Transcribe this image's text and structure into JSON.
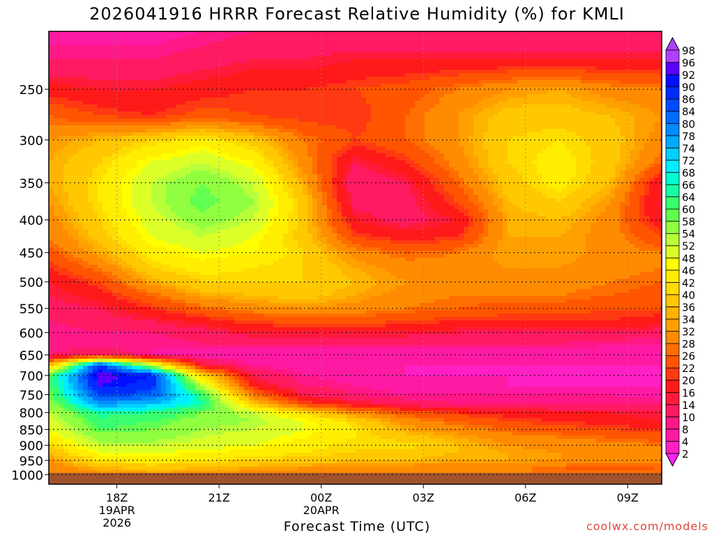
{
  "title": "2026041916 HRRR Forecast Relative Humidity (%) for KMLI",
  "credit": "coolwx.com/models",
  "chart_data": {
    "type": "heatmap",
    "title": "2026041916 HRRR Forecast Relative Humidity (%) for KMLI",
    "xlabel": "Forecast Time (UTC)",
    "ylabel": "",
    "x_axis": {
      "unit": "forecast hour from 2026-04-19 16Z",
      "range": [
        0,
        18
      ],
      "ticks": [
        {
          "hour": 2,
          "label": "18Z",
          "sub": [
            "19APR",
            "2026"
          ]
        },
        {
          "hour": 5,
          "label": "21Z",
          "sub": []
        },
        {
          "hour": 8,
          "label": "00Z",
          "sub": [
            "20APR"
          ]
        },
        {
          "hour": 11,
          "label": "03Z",
          "sub": []
        },
        {
          "hour": 14,
          "label": "06Z",
          "sub": []
        },
        {
          "hour": 17,
          "label": "09Z",
          "sub": []
        }
      ]
    },
    "y_axis": {
      "unit": "pressure (hPa)",
      "scale": "log",
      "reversed": true,
      "range": [
        1035,
        203
      ],
      "ticks": [
        250,
        300,
        350,
        400,
        450,
        500,
        550,
        600,
        650,
        700,
        750,
        800,
        850,
        900,
        950,
        1000
      ],
      "gridlines": "dotted",
      "surface_pressure": 994
    },
    "colorbar": {
      "levels": [
        2,
        4,
        8,
        10,
        14,
        16,
        20,
        22,
        26,
        28,
        32,
        34,
        36,
        40,
        42,
        46,
        48,
        52,
        54,
        58,
        60,
        64,
        66,
        68,
        72,
        74,
        78,
        80,
        84,
        86,
        90,
        92,
        96,
        98
      ],
      "colors": [
        "#ff1fff",
        "#ff1fc4",
        "#ff1aa3",
        "#ff1886",
        "#ff1a62",
        "#ff1a3a",
        "#ff1a1a",
        "#ff3a12",
        "#ff5500",
        "#ff6e00",
        "#ff8c00",
        "#ffa000",
        "#ffb400",
        "#ffc800",
        "#ffdc00",
        "#ffee00",
        "#ffff00",
        "#dcff28",
        "#b8ff3a",
        "#90ff40",
        "#60ff50",
        "#38ff70",
        "#18ffa0",
        "#00ffd0",
        "#00eeff",
        "#00cfff",
        "#00aaff",
        "#008cff",
        "#006cff",
        "#004cff",
        "#002cff",
        "#0010ff",
        "#5a00ff",
        "#b040ff"
      ]
    },
    "ground_color": "#a0522d",
    "grid": {
      "hours": [
        0,
        1.5,
        3,
        4.5,
        6,
        7.5,
        9,
        10.5,
        12,
        13.5,
        15,
        16.5,
        18
      ],
      "pressures": [
        203,
        225,
        250,
        275,
        300,
        325,
        350,
        375,
        400,
        425,
        450,
        475,
        500,
        525,
        550,
        575,
        600,
        625,
        650,
        675,
        700,
        725,
        750,
        775,
        800,
        825,
        850,
        875,
        900,
        925,
        950,
        975,
        1000
      ],
      "rh": [
        [
          6,
          6,
          6,
          8,
          10,
          10,
          10,
          10,
          10,
          10,
          10,
          10,
          10
        ],
        [
          10,
          10,
          10,
          12,
          14,
          14,
          16,
          16,
          16,
          16,
          16,
          16,
          16
        ],
        [
          18,
          16,
          16,
          18,
          20,
          20,
          22,
          24,
          28,
          32,
          34,
          30,
          28
        ],
        [
          26,
          22,
          20,
          24,
          22,
          20,
          20,
          26,
          32,
          38,
          38,
          36,
          32
        ],
        [
          32,
          36,
          40,
          44,
          38,
          28,
          22,
          26,
          32,
          40,
          42,
          38,
          30
        ],
        [
          34,
          40,
          48,
          52,
          46,
          30,
          14,
          20,
          30,
          40,
          44,
          38,
          26
        ],
        [
          34,
          42,
          52,
          58,
          52,
          34,
          10,
          14,
          26,
          38,
          44,
          36,
          16
        ],
        [
          32,
          42,
          52,
          60,
          54,
          38,
          12,
          12,
          22,
          36,
          40,
          32,
          14
        ],
        [
          30,
          40,
          50,
          56,
          52,
          38,
          16,
          12,
          16,
          34,
          36,
          30,
          16
        ],
        [
          28,
          38,
          48,
          52,
          48,
          38,
          22,
          18,
          20,
          34,
          34,
          30,
          22
        ],
        [
          24,
          34,
          44,
          48,
          46,
          40,
          30,
          26,
          28,
          34,
          34,
          30,
          28
        ],
        [
          20,
          28,
          40,
          44,
          42,
          40,
          34,
          30,
          30,
          32,
          32,
          30,
          28
        ],
        [
          16,
          22,
          34,
          40,
          40,
          40,
          36,
          32,
          30,
          30,
          30,
          28,
          26
        ],
        [
          14,
          18,
          26,
          34,
          36,
          38,
          34,
          30,
          28,
          28,
          28,
          26,
          24
        ],
        [
          12,
          14,
          20,
          26,
          30,
          32,
          30,
          28,
          26,
          24,
          24,
          22,
          22
        ],
        [
          10,
          12,
          14,
          18,
          22,
          24,
          24,
          22,
          20,
          20,
          20,
          20,
          18
        ],
        [
          8,
          10,
          10,
          12,
          16,
          16,
          16,
          16,
          14,
          14,
          14,
          14,
          12
        ],
        [
          8,
          8,
          8,
          10,
          10,
          10,
          10,
          10,
          10,
          10,
          10,
          8,
          8
        ],
        [
          10,
          14,
          8,
          6,
          6,
          6,
          6,
          6,
          6,
          6,
          6,
          6,
          6
        ],
        [
          36,
          88,
          54,
          16,
          8,
          6,
          4,
          4,
          4,
          4,
          4,
          4,
          4
        ],
        [
          60,
          94,
          90,
          40,
          14,
          8,
          6,
          4,
          4,
          4,
          4,
          4,
          4
        ],
        [
          60,
          92,
          88,
          52,
          18,
          10,
          8,
          6,
          6,
          4,
          4,
          4,
          4
        ],
        [
          58,
          86,
          84,
          62,
          28,
          14,
          10,
          8,
          8,
          8,
          8,
          8,
          6
        ],
        [
          56,
          78,
          74,
          66,
          38,
          22,
          16,
          12,
          10,
          10,
          10,
          10,
          10
        ],
        [
          52,
          66,
          64,
          58,
          52,
          40,
          30,
          24,
          20,
          18,
          16,
          16,
          14
        ],
        [
          50,
          62,
          60,
          56,
          54,
          48,
          40,
          30,
          26,
          22,
          20,
          18,
          16
        ],
        [
          48,
          60,
          58,
          54,
          52,
          48,
          42,
          34,
          30,
          26,
          24,
          22,
          20
        ],
        [
          44,
          56,
          56,
          52,
          50,
          46,
          42,
          38,
          34,
          30,
          28,
          26,
          24
        ],
        [
          40,
          52,
          52,
          50,
          48,
          44,
          40,
          42,
          36,
          32,
          30,
          30,
          28
        ],
        [
          36,
          48,
          48,
          46,
          44,
          42,
          40,
          38,
          36,
          34,
          32,
          32,
          30
        ],
        [
          32,
          42,
          44,
          42,
          40,
          38,
          36,
          36,
          34,
          34,
          32,
          32,
          30
        ],
        [
          28,
          36,
          38,
          36,
          34,
          32,
          32,
          30,
          30,
          30,
          26,
          24,
          26
        ],
        [
          28,
          30,
          32,
          32,
          30,
          30,
          28,
          28,
          28,
          28,
          28,
          28,
          28
        ]
      ]
    }
  }
}
